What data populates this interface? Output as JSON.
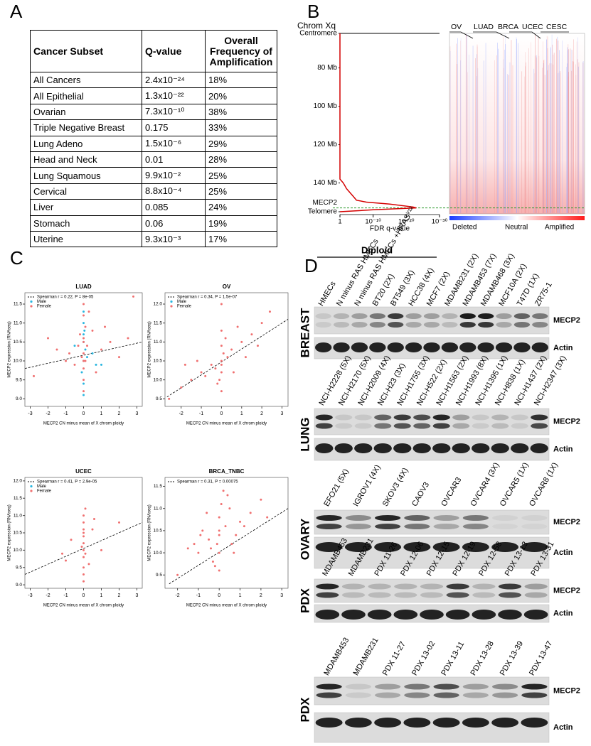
{
  "panel_a": {
    "letter": "A",
    "table": {
      "header": [
        "Cancer Subset",
        "Q-value",
        "Overall Frequency of Amplification"
      ],
      "rows": [
        [
          "All Cancers",
          "2.4x10⁻²⁴",
          "18%"
        ],
        [
          "All Epithelial",
          "1.3x10⁻²²",
          "20%"
        ],
        [
          "Ovarian",
          "7.3x10⁻¹⁰",
          "38%"
        ],
        [
          "Triple Negative Breast",
          "0.175",
          "33%"
        ],
        [
          "Lung Adeno",
          "1.5x10⁻⁶",
          "29%"
        ],
        [
          "Head and Neck",
          "0.01",
          "28%"
        ],
        [
          "Lung Squamous",
          "9.9x10⁻²",
          "25%"
        ],
        [
          "Cervical",
          "8.8x10⁻⁴",
          "25%"
        ],
        [
          "Liver",
          "0.085",
          "24%"
        ],
        [
          "Stomach",
          "0.06",
          "19%"
        ],
        [
          "Uterine",
          "9.3x10⁻³",
          "17%"
        ]
      ]
    }
  },
  "panel_b": {
    "letter": "B",
    "tumor_types": [
      "OV",
      "LUAD",
      "BRCA",
      "UCEC",
      "CESC"
    ],
    "heatmap_legend": [
      "Deleted",
      "Neutral",
      "Amplified"
    ]
  },
  "panel_c": {
    "letter": "C"
  },
  "chart_data": [
    {
      "type": "line",
      "title": "Chrom Xq",
      "x_label": "FDR q-value",
      "xlog": true,
      "yinvert": true,
      "xlim": [
        1,
        1e-30
      ],
      "xticks": [
        1,
        {
          "value": 1e-10,
          "label": "10⁻¹⁰"
        },
        {
          "value": 1e-20,
          "label": "10⁻²⁰"
        },
        {
          "value": 1e-30,
          "label": "10⁻³⁰"
        }
      ],
      "ylim": [
        62,
        155
      ],
      "yticks": [
        {
          "value": 62,
          "label": "Centromere"
        },
        {
          "value": 80,
          "label": "80 Mb"
        },
        {
          "value": 100,
          "label": "100 Mb"
        },
        {
          "value": 120,
          "label": "120 Mb"
        },
        {
          "value": 140,
          "label": "140 Mb"
        },
        {
          "value": 155,
          "label": "Telomere"
        }
      ],
      "annotation": {
        "text": "MECP2",
        "y": 153
      },
      "series": [
        {
          "color": "#d40000",
          "x": [
            1,
            1,
            0.1,
            0.01,
            0.001,
            0.0001,
            1e-05,
            1e-08,
            1e-15,
            1e-22,
            1e-23,
            1e-10,
            1
          ],
          "y": [
            62,
            138,
            140,
            143,
            145,
            147,
            149,
            150,
            151,
            152.5,
            153,
            154,
            155
          ]
        }
      ]
    },
    {
      "type": "scatter",
      "title": "LUAD",
      "x_label": "MECP2 CN minus mean of X chrom ploidy",
      "y_label": "MECP2 expression (RNAseq)",
      "xlim": [
        -3.3,
        3.3
      ],
      "xticks": [
        -3,
        -2,
        -1,
        0,
        1,
        2,
        3
      ],
      "ylim": [
        8.8,
        11.8
      ],
      "yticks": [
        {
          "value": 9,
          "label": "9.0"
        },
        9.5,
        {
          "value": 10,
          "label": "10.0"
        },
        10.5,
        {
          "value": 11,
          "label": "11.0"
        },
        11.5
      ],
      "series": [
        {
          "name": "Spearman r = 0.22, P = 8e-05",
          "color": "#000000",
          "line_style": "dashed",
          "x": [
            -3.3,
            3.3
          ],
          "y": [
            9.8,
            10.5
          ]
        },
        {
          "name": "Male",
          "color": "#29b6e0",
          "x": [
            0,
            0,
            0,
            0.1,
            -0.1,
            0,
            0.05,
            0,
            0.5,
            -0.5,
            1,
            0,
            0,
            0.2,
            0.7
          ],
          "y": [
            10.5,
            10,
            11,
            10.3,
            9.7,
            11.3,
            10.8,
            9.4,
            10.2,
            10.4,
            9.9,
            10.7,
            9.1,
            10.1,
            9.9
          ]
        },
        {
          "name": "Female",
          "color": "#f07070",
          "x": [
            0,
            0,
            0,
            0.1,
            -0.1,
            0,
            0,
            0.2,
            -0.2,
            1,
            -1,
            0.5,
            -0.5,
            1.5,
            -1.5,
            2,
            -2,
            2.8,
            0.3,
            0,
            0,
            0,
            -0.3,
            0.7,
            1.2,
            -0.8,
            0.1,
            0,
            2.5,
            -2.8
          ],
          "y": [
            10.2,
            10.6,
            9.8,
            10.9,
            10.1,
            11.2,
            9.5,
            10.4,
            10.7,
            10.3,
            10,
            10.8,
            9.9,
            10.5,
            10.3,
            10.1,
            10.6,
            11.7,
            11.3,
            9.2,
            10,
            11.5,
            10.4,
            9.7,
            10.9,
            10.2,
            10,
            10.5,
            10.6,
            9.6
          ]
        }
      ]
    },
    {
      "type": "scatter",
      "title": "OV",
      "x_label": "MECP2 CN minus mean of X chrom ploidy",
      "y_label": "MECP2 expression (RNAseq)",
      "xlim": [
        -2.8,
        3.3
      ],
      "xticks": [
        -2,
        -1,
        0,
        1,
        2,
        3
      ],
      "ylim": [
        9.3,
        12.3
      ],
      "yticks": [
        9.5,
        {
          "value": 10,
          "label": "10.0"
        },
        10.5,
        {
          "value": 11,
          "label": "11.0"
        },
        11.5,
        {
          "value": 12,
          "label": "12.0"
        }
      ],
      "series": [
        {
          "name": "Spearman r = 0.34, P = 1.5e-07",
          "color": "#000000",
          "line_style": "dashed",
          "x": [
            -2.7,
            3.3
          ],
          "y": [
            9.55,
            11.6
          ]
        },
        {
          "name": "Male",
          "color": "#29b6e0",
          "x": [],
          "y": []
        },
        {
          "name": "Female",
          "color": "#f07070",
          "x": [
            0,
            0,
            0,
            0,
            -0.1,
            0.1,
            -1,
            1,
            -0.5,
            0.5,
            -1.5,
            1.5,
            2,
            -2,
            -2.6,
            2.4,
            0.3,
            -0.3,
            0.8,
            -0.8,
            1.2,
            -1.2,
            0,
            0,
            0.6,
            1.8,
            -1.8,
            0.2,
            -0.2,
            0
          ],
          "y": [
            10.5,
            10.9,
            10.2,
            11.3,
            10,
            10.7,
            10.2,
            11,
            10.4,
            10.8,
            10,
            11.2,
            11.5,
            9.8,
            9.5,
            11.8,
            10.6,
            10.3,
            11.4,
            10.1,
            10.6,
            10.5,
            9.7,
            12,
            10.2,
            10.9,
            10.4,
            11.1,
            9.9,
            10.4
          ]
        }
      ]
    },
    {
      "type": "scatter",
      "title": "UCEC",
      "x_label": "MECP2 CN minus mean of X chrom ploidy",
      "y_label": "MECP2 expression (RNAseq)",
      "xlim": [
        -3.3,
        3.3
      ],
      "xticks": [
        -3,
        -2,
        -1,
        0,
        1,
        2,
        3
      ],
      "ylim": [
        8.9,
        12.1
      ],
      "yticks": [
        {
          "value": 9,
          "label": "9.0"
        },
        9.5,
        {
          "value": 10,
          "label": "10.0"
        },
        10.5,
        {
          "value": 11,
          "label": "11.0"
        },
        11.5,
        {
          "value": 12,
          "label": "12.0"
        }
      ],
      "series": [
        {
          "name": "Spearman r = 0.41, P = 2.9e-05",
          "color": "#000000",
          "line_style": "dashed",
          "x": [
            -3.3,
            3.3
          ],
          "y": [
            9.3,
            10.8
          ]
        },
        {
          "name": "Male",
          "color": "#29b6e0",
          "x": [],
          "y": []
        },
        {
          "name": "Female",
          "color": "#f07070",
          "x": [
            0,
            0,
            0,
            0,
            0,
            0,
            0,
            0.1,
            -0.1,
            -1,
            -0.7,
            0.5,
            1,
            2,
            0,
            0,
            0,
            -1.2,
            0.3,
            0.6,
            0,
            0.1
          ],
          "y": [
            9.5,
            9.8,
            10,
            10.2,
            10.4,
            10.6,
            10.8,
            9.9,
            10.1,
            9.7,
            10.3,
            10.6,
            10,
            10.8,
            9.1,
            9.3,
            11,
            9.9,
            9.6,
            10.9,
            10.5,
            11.2
          ]
        }
      ]
    },
    {
      "type": "scatter",
      "title": "BRCA_TNBC",
      "x_label": "MECP2 CN minus mean of X chrom ploidy",
      "y_label": "MECP2 expression (RNAseq)",
      "xlim": [
        -2.6,
        3.3
      ],
      "xticks": [
        -2,
        -1,
        0,
        1,
        2,
        3
      ],
      "ylim": [
        9.2,
        11.7
      ],
      "yticks": [
        9.5,
        {
          "value": 10,
          "label": "10.0"
        },
        10.5,
        {
          "value": 11,
          "label": "11.0"
        },
        11.5
      ],
      "series": [
        {
          "name": "Spearman r = 0.31, P = 0.00075",
          "color": "#000000",
          "line_style": "dashed",
          "x": [
            -2.4,
            3.3
          ],
          "y": [
            9.3,
            11
          ]
        },
        {
          "color": "#f07070",
          "x": [
            0,
            0,
            0,
            0.1,
            -0.1,
            0.3,
            -0.3,
            0.5,
            -0.5,
            1,
            -1,
            1.5,
            -1.5,
            2,
            -2,
            0.8,
            -0.8,
            0.2,
            -0.2,
            0.6,
            -0.6,
            1.2,
            -1.2,
            2.3,
            0,
            0.4,
            -0.4,
            0,
            0.7,
            -0.9
          ],
          "y": [
            10.4,
            10.8,
            10,
            11.1,
            10.2,
            10.6,
            9.8,
            11,
            10.3,
            10.7,
            10,
            10.9,
            10.1,
            11.2,
            9.5,
            10.4,
            10.5,
            11.4,
            9.7,
            10.2,
            10.9,
            10.6,
            10.2,
            10.8,
            10.5,
            11.3,
            10.1,
            9.6,
            10,
            10.4
          ]
        }
      ]
    }
  ],
  "panel_d": {
    "letter": "D",
    "diploid_label": "Diploid",
    "blots": [
      {
        "tissue": "BREAST",
        "proteins": [
          "MECP2",
          "Actin"
        ],
        "lanes": [
          "HMECs",
          "N minus RAS HMECs",
          "N minus RAS HMECs +HRASⱽ¹²",
          "BT20 (2X)",
          "BT549 (3X)",
          "HCC38 (4X)",
          "MCF7 (2X)",
          "MDAMB231 (2X)",
          "MDAMB453 (7X)",
          "MDAMB468 (3X)",
          "MCF10A (2X)",
          "T47D (1X)",
          "ZR75-1"
        ]
      },
      {
        "tissue": "LUNG",
        "proteins": [
          "MECP2",
          "Actin"
        ],
        "lanes": [
          "NCI-H2228 (5X)",
          "NCI-H2170 (5X)",
          "NCI-H2009 (4X)",
          "NCI-H23 (3X)",
          "NCI-H1755 (3X)",
          "NCI-H522 (2X)",
          "NCI-H1563 (2X)",
          "NCI-H1993 (8X)",
          "NCI-H1395 (1X)",
          "NCI-H838 (1X)",
          "NCI-H1437 (2X)",
          "NCI-H2347 (3X)"
        ]
      },
      {
        "tissue": "OVARY",
        "proteins": [
          "MECP2",
          "Actin"
        ],
        "lanes": [
          "EFO21 (5X)",
          "IGROV1 (4X)",
          "SKOV3 (4X)",
          "CAOV3",
          "OVCAR3",
          "OVCAR4 (3X)",
          "OVCAR5 (1X)",
          "OVCAR8 (1X)"
        ]
      },
      {
        "tissue": "PDX",
        "proteins": [
          "MECP2",
          "Actin"
        ],
        "lanes": [
          "MDAMB453",
          "MDAMB231",
          "PDX 11-26",
          "PDX 12-06",
          "PDX 12-15",
          "PDX 12-19",
          "PDX 12-58",
          "PDX 13-13",
          "PDX 13-31"
        ]
      },
      {
        "tissue": "PDX",
        "proteins": [
          "MECP2",
          "Actin"
        ],
        "lanes": [
          "MDAMB453",
          "MDAMB231",
          "PDX 11-27",
          "PDX 13-02",
          "PDX 13-11",
          "PDX 13-28",
          "PDX 13-39",
          "PDX 13-47"
        ]
      }
    ]
  }
}
